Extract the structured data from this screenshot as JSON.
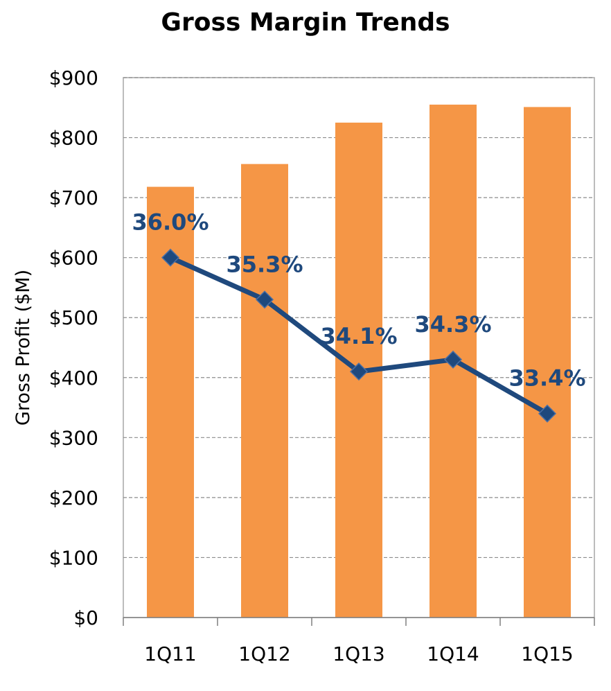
{
  "chart_data": {
    "type": "bar",
    "title": "Gross Margin Trends",
    "xlabel": "",
    "ylabel": "Gross Profit ($M)",
    "categories": [
      "1Q11",
      "1Q12",
      "1Q13",
      "1Q14",
      "1Q15"
    ],
    "series": [
      {
        "type": "bar",
        "values": [
          718,
          756,
          825,
          855,
          851
        ],
        "color": "#F59646"
      },
      {
        "type": "line",
        "values": [
          36.0,
          35.3,
          34.1,
          34.3,
          33.4
        ],
        "labels": [
          "36.0%",
          "35.3%",
          "34.1%",
          "34.3%",
          "33.4%"
        ],
        "color": "#1F497D",
        "marker": "diamond"
      }
    ],
    "ylim": [
      0,
      900
    ],
    "yticks": [
      0,
      100,
      200,
      300,
      400,
      500,
      600,
      700,
      800,
      900
    ],
    "ytick_labels": [
      "$0",
      "$100",
      "$200",
      "$300",
      "$400",
      "$500",
      "$600",
      "$700",
      "$800",
      "$900"
    ],
    "secondary_ylim": [
      30,
      39
    ],
    "grid": true,
    "legend": "none"
  }
}
